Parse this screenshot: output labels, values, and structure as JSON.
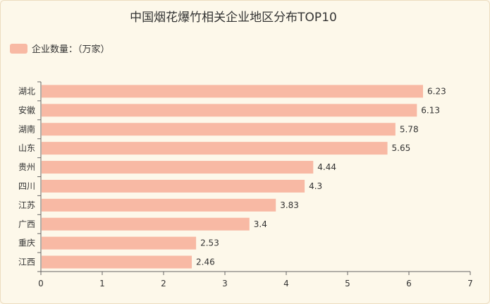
{
  "chart_data": {
    "type": "bar",
    "orientation": "horizontal",
    "title": "中国烟花爆竹相关企业地区分布TOP10",
    "series": [
      {
        "name": "企业数量：（万家）",
        "values": [
          6.23,
          6.13,
          5.78,
          5.65,
          4.44,
          4.3,
          3.83,
          3.4,
          2.53,
          2.46
        ]
      }
    ],
    "categories": [
      "湖北",
      "安徽",
      "湖南",
      "山东",
      "贵州",
      "四川",
      "江苏",
      "广西",
      "重庆",
      "江西"
    ],
    "value_labels": [
      "6.23",
      "6.13",
      "5.78",
      "5.65",
      "4.44",
      "4.3",
      "3.83",
      "3.4",
      "2.53",
      "2.46"
    ],
    "xlim": [
      0,
      7
    ],
    "xticks": [
      "0",
      "1",
      "2",
      "3",
      "4",
      "5",
      "6",
      "7"
    ],
    "legend_position": "top-left",
    "grid": false,
    "colors": {
      "bar": "#f8b9a4",
      "axis": "#666666",
      "background": "#fdf8ea"
    }
  }
}
